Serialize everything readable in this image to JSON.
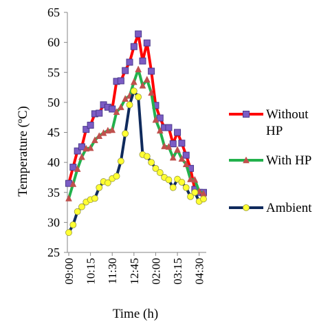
{
  "chart_data": {
    "type": "line",
    "title": "",
    "xlabel": "Time (h)",
    "ylabel": "Temperature (ºC)",
    "ylim": [
      25,
      65
    ],
    "yticks": [
      "25",
      "30",
      "35",
      "40",
      "45",
      "50",
      "55",
      "60",
      "65"
    ],
    "x_tick_labels": [
      "09:00",
      "10:15",
      "11:30",
      "12:45",
      "02:00",
      "03:15",
      "04:30"
    ],
    "x": [
      "09:00",
      "09:15",
      "09:30",
      "09:45",
      "10:00",
      "10:15",
      "10:30",
      "10:45",
      "11:00",
      "11:15",
      "11:30",
      "11:45",
      "12:00",
      "12:15",
      "12:30",
      "12:45",
      "01:00",
      "01:15",
      "01:30",
      "01:45",
      "02:00",
      "02:15",
      "02:30",
      "02:45",
      "03:00",
      "03:15",
      "03:30",
      "03:45",
      "04:00",
      "04:15",
      "04:30",
      "04:45"
    ],
    "grid": false,
    "legend_position": "right",
    "series": [
      {
        "name": "Without HP",
        "color": "#ff0000",
        "marker": "square",
        "marker_color": "#7b5cc4",
        "values": [
          36.5,
          39.2,
          41.9,
          42.6,
          45.5,
          46.2,
          48.1,
          48.2,
          49.6,
          49.2,
          48.9,
          53.5,
          53.6,
          55.3,
          56.7,
          59.3,
          61.4,
          56.9,
          59.9,
          55.2,
          49.5,
          47.4,
          45.8,
          45.8,
          43.1,
          45.0,
          43.2,
          41.2,
          39.0,
          35.5,
          35.0,
          35.0
        ]
      },
      {
        "name": "With HP",
        "color": "#22b14c",
        "marker": "triangle",
        "marker_color": "#c0504d",
        "values": [
          34.0,
          36.4,
          38.9,
          40.9,
          42.3,
          42.4,
          43.7,
          44.4,
          44.9,
          45.3,
          45.4,
          48.4,
          49.2,
          50.6,
          51.1,
          53.4,
          55.5,
          52.8,
          53.8,
          51.6,
          47.1,
          45.3,
          42.7,
          42.6,
          40.8,
          42.1,
          40.6,
          39.7,
          37.2,
          37.1,
          35.2,
          34.8
        ]
      },
      {
        "name": "Ambient",
        "color": "#0f2a5c",
        "marker": "circle",
        "marker_color": "#ffff33",
        "values": [
          28.3,
          29.6,
          31.8,
          32.6,
          33.4,
          33.8,
          34.0,
          35.8,
          36.8,
          36.6,
          37.3,
          37.7,
          40.2,
          44.8,
          49.6,
          51.9,
          50.9,
          41.3,
          41.0,
          40.0,
          39.0,
          38.3,
          37.5,
          37.1,
          35.8,
          37.2,
          36.7,
          35.8,
          34.3,
          35.0,
          33.5,
          33.9
        ]
      }
    ]
  }
}
